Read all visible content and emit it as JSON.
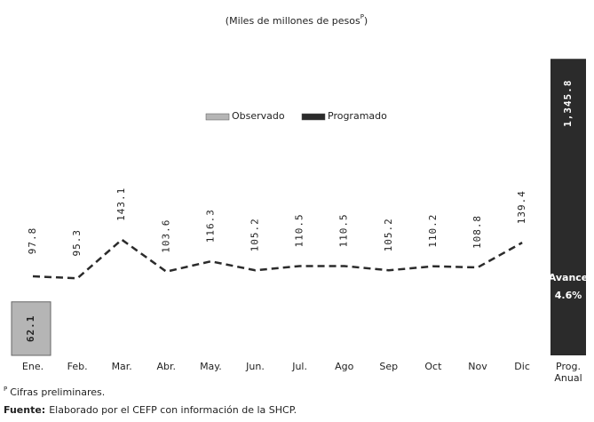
{
  "chart_data": {
    "type": "line",
    "subtitle_parts": [
      "(Miles de millones de pesos",
      "P",
      ")"
    ],
    "categories": [
      "Ene.",
      "Feb.",
      "Mar.",
      "Abr.",
      "May.",
      "Jun.",
      "Jul.",
      "Ago",
      "Sep",
      "Oct",
      "Nov",
      "Dic"
    ],
    "series": [
      {
        "name": "Observado",
        "color": "#b5b5b5",
        "values": [
          62.1,
          null,
          null,
          null,
          null,
          null,
          null,
          null,
          null,
          null,
          null,
          null
        ]
      },
      {
        "name": "Programado",
        "color": "#2b2b2b",
        "values": [
          97.8,
          95.3,
          143.1,
          103.6,
          116.3,
          105.2,
          110.5,
          110.5,
          105.2,
          110.2,
          108.8,
          139.4
        ]
      }
    ],
    "annual": {
      "category_lines": [
        "Prog.",
        "Anual"
      ],
      "value": 1345.8,
      "value_label": "1,345.8",
      "color": "#2b2b2b",
      "annotation": [
        "Avance",
        "4.6%"
      ]
    },
    "footnotes": {
      "note_sup": "P",
      "note": "Cifras preliminares.",
      "source_label": "Fuente:",
      "source": "Elaborado por el CEFP con información de la SHCP."
    }
  }
}
